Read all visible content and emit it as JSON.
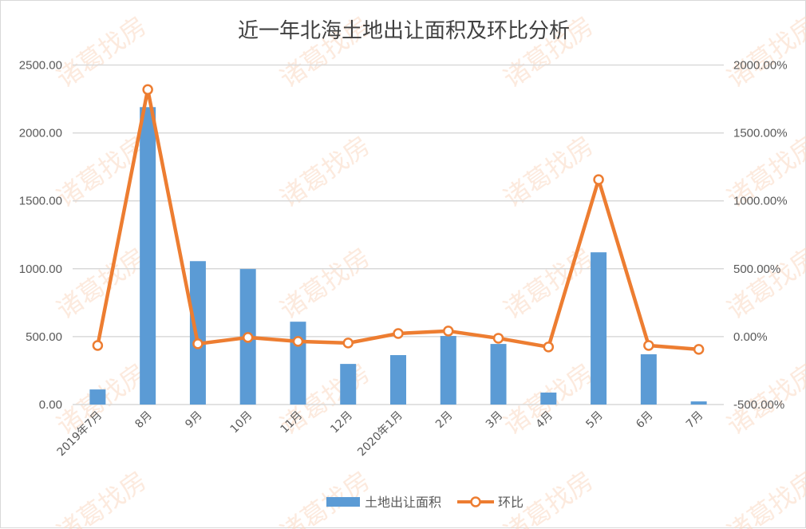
{
  "chart_data": {
    "type": "bar+line",
    "title": "近一年北海土地出让面积及环比分析",
    "categories": [
      "2019年7月",
      "8月",
      "9月",
      "10月",
      "11月",
      "12月",
      "2020年1月",
      "2月",
      "3月",
      "4月",
      "5月",
      "6月",
      "7月"
    ],
    "series": [
      {
        "name": "土地出让面积",
        "type": "bar",
        "axis": "left",
        "color": "#5b9bd5",
        "values": [
          111,
          2190,
          1056,
          998,
          610,
          299,
          364,
          505,
          446,
          88,
          1121,
          370,
          23
        ]
      },
      {
        "name": "环比",
        "type": "line",
        "axis": "right",
        "color": "#ed7d31",
        "unit": "%",
        "values": [
          -65,
          1819,
          -53,
          -6,
          -35,
          -47,
          23,
          41,
          -12,
          -76,
          1156,
          -65,
          -94
        ]
      }
    ],
    "left_axis": {
      "ylim": [
        0,
        2500
      ],
      "ticks": [
        "0.00",
        "500.00",
        "1000.00",
        "1500.00",
        "2000.00",
        "2500.00"
      ],
      "tick_values": [
        0,
        500,
        1000,
        1500,
        2000,
        2500
      ]
    },
    "right_axis": {
      "ylim": [
        -500,
        2000
      ],
      "ticks": [
        "-500.00%",
        "0.00%",
        "500.00%",
        "1000.00%",
        "1500.00%",
        "2000.00%"
      ],
      "tick_values": [
        -500,
        0,
        500,
        1000,
        1500,
        2000
      ]
    },
    "xlabel": "",
    "ylabel": "",
    "grid": true,
    "legend_position": "bottom"
  },
  "legend": {
    "bar_label": "土地出让面积",
    "line_label": "环比"
  },
  "watermark": {
    "text": "诸葛找房",
    "color": "#f4b183"
  }
}
